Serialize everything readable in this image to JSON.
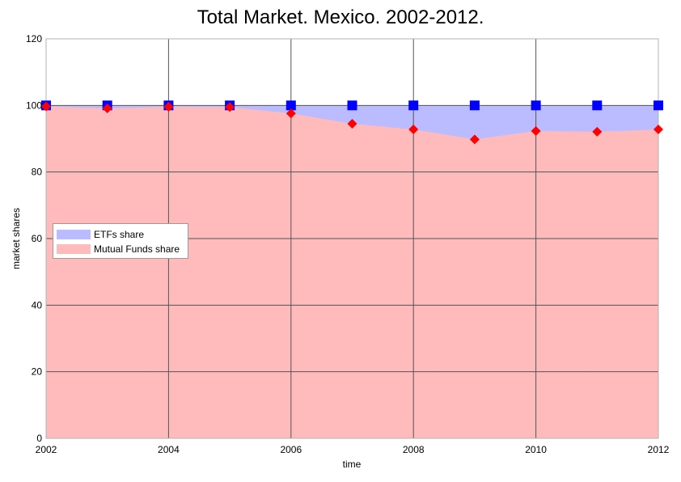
{
  "chart_data": {
    "type": "area",
    "title": "Total Market. Mexico. 2002-2012.",
    "xlabel": "time",
    "ylabel": "market shares",
    "xlim": [
      2002,
      2012
    ],
    "ylim": [
      0,
      120
    ],
    "x_ticks": [
      2002,
      2004,
      2006,
      2008,
      2010,
      2012
    ],
    "y_ticks": [
      0,
      20,
      40,
      60,
      80,
      100,
      120
    ],
    "grid": true,
    "legend_position": "middle-left",
    "x": [
      2002,
      2003,
      2004,
      2005,
      2006,
      2007,
      2008,
      2009,
      2010,
      2011,
      2012
    ],
    "series": [
      {
        "name": "ETFs share",
        "color": "#bbbbff",
        "marker_color": "#0000ff",
        "marker": "square",
        "values": [
          100,
          100,
          100,
          100,
          100,
          100,
          100,
          100,
          100,
          100,
          100
        ]
      },
      {
        "name": "Mutual Funds share",
        "color": "#ffbbbb",
        "marker_color": "#ff0000",
        "marker": "diamond",
        "values": [
          99.7,
          99.1,
          99.6,
          99.5,
          97.6,
          94.5,
          92.8,
          89.8,
          92.3,
          92.1,
          92.8
        ]
      }
    ]
  }
}
